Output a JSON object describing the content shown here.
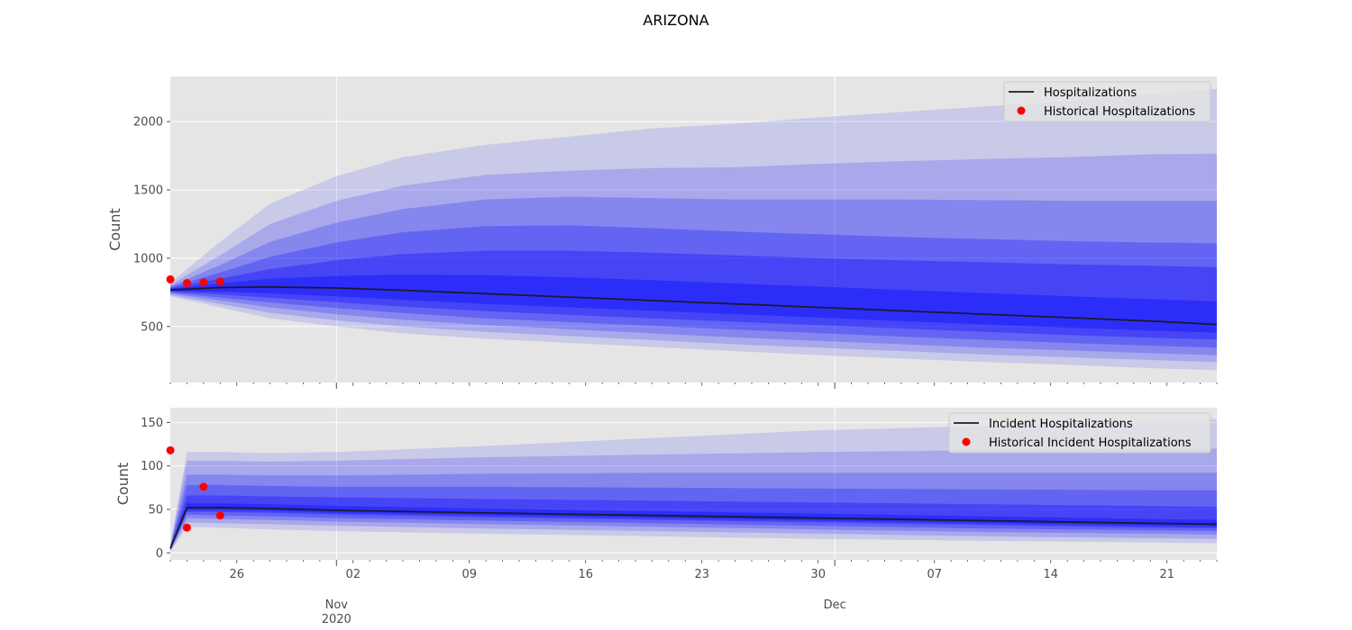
{
  "title": "ARIZONA",
  "colors": {
    "panel_bg": "#e5e5e5",
    "grid": "#ffffff",
    "band": "#0000ff",
    "median": "#1a1a2e",
    "observed": "#ff0000",
    "text": "#4d4d4d"
  },
  "x_axis": {
    "minor_tick_labels": [
      "26",
      "02",
      "09",
      "16",
      "23",
      "30",
      "07",
      "14",
      "21"
    ],
    "month_labels": [
      {
        "name": "Nov",
        "year": "2020"
      },
      {
        "name": "Dec",
        "year": ""
      }
    ]
  },
  "chart_data": [
    {
      "type": "area",
      "title": "",
      "ylabel": "Count",
      "legend": "top-right",
      "grid": true,
      "ylim": [
        90,
        2330
      ],
      "xlim": [
        "2020-10-22",
        "2020-12-24"
      ],
      "yticks": [
        500,
        1000,
        1500,
        2000
      ],
      "legend_entries": [
        "Hospitalizations",
        "Historical Hospitalizations"
      ],
      "series": [
        {
          "name": "Hospitalizations",
          "kind": "line",
          "x": [
            "2020-10-22",
            "2020-10-25",
            "2020-10-28",
            "2020-11-01",
            "2020-11-05",
            "2020-11-10",
            "2020-11-15",
            "2020-11-20",
            "2020-11-25",
            "2020-11-30",
            "2020-12-05",
            "2020-12-10",
            "2020-12-15",
            "2020-12-20",
            "2020-12-24"
          ],
          "values": [
            768,
            785,
            790,
            782,
            765,
            740,
            715,
            690,
            665,
            640,
            615,
            590,
            565,
            540,
            515
          ]
        },
        {
          "name": "Historical Hospitalizations",
          "kind": "scatter",
          "x": [
            "2020-10-22",
            "2020-10-23",
            "2020-10-24",
            "2020-10-25"
          ],
          "values": [
            845,
            818,
            823,
            829
          ]
        }
      ],
      "bands": [
        {
          "x": [
            "2020-10-22",
            "2020-10-25",
            "2020-10-28",
            "2020-11-01",
            "2020-11-05",
            "2020-11-10",
            "2020-11-15",
            "2020-11-20",
            "2020-11-25",
            "2020-11-30",
            "2020-12-05",
            "2020-12-10",
            "2020-12-15",
            "2020-12-20",
            "2020-12-24"
          ],
          "lower": [
            720,
            640,
            560,
            500,
            450,
            410,
            380,
            350,
            320,
            290,
            265,
            240,
            220,
            195,
            180
          ],
          "upper": [
            820,
            1120,
            1400,
            1600,
            1740,
            1830,
            1890,
            1950,
            1985,
            2030,
            2070,
            2110,
            2150,
            2200,
            2240
          ]
        },
        {
          "x": [
            "2020-10-22",
            "2020-10-25",
            "2020-10-28",
            "2020-11-01",
            "2020-11-05",
            "2020-11-10",
            "2020-11-15",
            "2020-11-20",
            "2020-11-25",
            "2020-11-30",
            "2020-12-05",
            "2020-12-10",
            "2020-12-15",
            "2020-12-20",
            "2020-12-24"
          ],
          "lower": [
            730,
            665,
            600,
            545,
            500,
            460,
            430,
            400,
            370,
            345,
            320,
            295,
            275,
            255,
            240
          ],
          "upper": [
            805,
            1020,
            1250,
            1420,
            1530,
            1610,
            1640,
            1660,
            1665,
            1690,
            1710,
            1725,
            1740,
            1760,
            1765
          ]
        },
        {
          "x": [
            "2020-10-22",
            "2020-10-25",
            "2020-10-28",
            "2020-11-01",
            "2020-11-05",
            "2020-11-10",
            "2020-11-15",
            "2020-11-20",
            "2020-11-25",
            "2020-11-30",
            "2020-12-05",
            "2020-12-10",
            "2020-12-15",
            "2020-12-20",
            "2020-12-24"
          ],
          "lower": [
            740,
            690,
            640,
            590,
            550,
            510,
            480,
            450,
            420,
            395,
            370,
            345,
            325,
            305,
            290
          ],
          "upper": [
            795,
            950,
            1120,
            1260,
            1360,
            1430,
            1450,
            1440,
            1430,
            1430,
            1430,
            1425,
            1420,
            1420,
            1420
          ]
        },
        {
          "x": [
            "2020-10-22",
            "2020-10-25",
            "2020-10-28",
            "2020-11-01",
            "2020-11-05",
            "2020-11-10",
            "2020-11-15",
            "2020-11-20",
            "2020-11-25",
            "2020-11-30",
            "2020-12-05",
            "2020-12-10",
            "2020-12-15",
            "2020-12-20",
            "2020-12-24"
          ],
          "lower": [
            748,
            712,
            676,
            635,
            598,
            560,
            532,
            505,
            478,
            452,
            426,
            402,
            380,
            360,
            345
          ],
          "upper": [
            788,
            895,
            1010,
            1115,
            1190,
            1235,
            1240,
            1220,
            1195,
            1175,
            1155,
            1140,
            1125,
            1115,
            1110
          ]
        },
        {
          "x": [
            "2020-10-22",
            "2020-10-25",
            "2020-10-28",
            "2020-11-01",
            "2020-11-05",
            "2020-11-10",
            "2020-11-15",
            "2020-11-20",
            "2020-11-25",
            "2020-11-30",
            "2020-12-05",
            "2020-12-10",
            "2020-12-15",
            "2020-12-20",
            "2020-12-24"
          ],
          "lower": [
            755,
            735,
            710,
            678,
            645,
            612,
            585,
            560,
            535,
            510,
            485,
            460,
            438,
            418,
            405
          ],
          "upper": [
            782,
            850,
            920,
            985,
            1030,
            1055,
            1055,
            1040,
            1020,
            1000,
            985,
            970,
            955,
            945,
            935
          ]
        },
        {
          "x": [
            "2020-10-22",
            "2020-10-25",
            "2020-10-28",
            "2020-11-01",
            "2020-11-05",
            "2020-11-10",
            "2020-11-15",
            "2020-11-20",
            "2020-11-25",
            "2020-11-30",
            "2020-12-05",
            "2020-12-10",
            "2020-12-15",
            "2020-12-20",
            "2020-12-24"
          ],
          "lower": [
            760,
            755,
            742,
            720,
            695,
            665,
            640,
            615,
            590,
            565,
            540,
            515,
            492,
            470,
            455
          ],
          "upper": [
            776,
            815,
            850,
            870,
            880,
            875,
            860,
            840,
            815,
            792,
            768,
            745,
            722,
            700,
            685
          ]
        }
      ]
    },
    {
      "type": "area",
      "title": "",
      "ylabel": "Count",
      "legend": "top-right",
      "grid": true,
      "ylim": [
        -8,
        167
      ],
      "xlim": [
        "2020-10-22",
        "2020-12-24"
      ],
      "yticks": [
        0,
        50,
        100,
        150
      ],
      "legend_entries": [
        "Incident Hospitalizations",
        "Historical Incident Hospitalizations"
      ],
      "series": [
        {
          "name": "Incident Hospitalizations",
          "kind": "line",
          "x": [
            "2020-10-22",
            "2020-10-23",
            "2020-10-25",
            "2020-10-28",
            "2020-11-01",
            "2020-11-10",
            "2020-11-20",
            "2020-11-30",
            "2020-12-10",
            "2020-12-20",
            "2020-12-24"
          ],
          "values": [
            5,
            52,
            52,
            51,
            49,
            46,
            43,
            40,
            37,
            34,
            33
          ]
        },
        {
          "name": "Historical Incident Hospitalizations",
          "kind": "scatter",
          "x": [
            "2020-10-22",
            "2020-10-23",
            "2020-10-24",
            "2020-10-25"
          ],
          "values": [
            118,
            29,
            76,
            43
          ]
        }
      ],
      "bands": [
        {
          "x": [
            "2020-10-22",
            "2020-10-23",
            "2020-10-25",
            "2020-10-28",
            "2020-11-01",
            "2020-11-10",
            "2020-11-20",
            "2020-11-30",
            "2020-12-10",
            "2020-12-20",
            "2020-12-24"
          ],
          "lower": [
            1,
            30,
            29,
            27,
            25,
            22,
            19,
            16,
            14,
            12,
            11
          ],
          "upper": [
            10,
            116,
            116,
            115,
            116,
            123,
            132,
            141,
            146,
            152,
            154
          ]
        },
        {
          "x": [
            "2020-10-22",
            "2020-10-23",
            "2020-10-25",
            "2020-10-28",
            "2020-11-01",
            "2020-11-10",
            "2020-11-20",
            "2020-11-30",
            "2020-12-10",
            "2020-12-20",
            "2020-12-24"
          ],
          "lower": [
            2,
            35,
            34,
            33,
            31,
            28,
            25,
            22,
            19,
            17,
            16
          ],
          "upper": [
            9,
            106,
            106,
            105,
            106,
            110,
            113,
            116,
            118,
            120,
            120
          ]
        },
        {
          "x": [
            "2020-10-22",
            "2020-10-23",
            "2020-10-25",
            "2020-10-28",
            "2020-11-01",
            "2020-11-10",
            "2020-11-20",
            "2020-11-30",
            "2020-12-10",
            "2020-12-20",
            "2020-12-24"
          ],
          "lower": [
            3,
            40,
            39,
            38,
            36,
            33,
            30,
            27,
            24,
            22,
            21
          ],
          "upper": [
            8,
            90,
            90,
            89,
            89,
            91,
            92,
            92,
            92,
            92,
            92
          ]
        },
        {
          "x": [
            "2020-10-22",
            "2020-10-23",
            "2020-10-25",
            "2020-10-28",
            "2020-11-01",
            "2020-11-10",
            "2020-11-20",
            "2020-11-30",
            "2020-12-10",
            "2020-12-20",
            "2020-12-24"
          ],
          "lower": [
            3,
            44,
            43,
            42,
            40,
            37,
            34,
            31,
            28,
            26,
            25
          ],
          "upper": [
            7,
            78,
            78,
            77,
            76,
            76,
            75,
            74,
            73,
            72,
            72
          ]
        },
        {
          "x": [
            "2020-10-22",
            "2020-10-23",
            "2020-10-25",
            "2020-10-28",
            "2020-11-01",
            "2020-11-10",
            "2020-11-20",
            "2020-11-30",
            "2020-12-10",
            "2020-12-20",
            "2020-12-24"
          ],
          "lower": [
            4,
            47,
            47,
            46,
            44,
            41,
            38,
            35,
            32,
            29,
            28
          ],
          "upper": [
            6,
            66,
            66,
            65,
            64,
            62,
            60,
            58,
            56,
            54,
            53
          ]
        },
        {
          "x": [
            "2020-10-22",
            "2020-10-23",
            "2020-10-25",
            "2020-10-28",
            "2020-11-01",
            "2020-11-10",
            "2020-11-20",
            "2020-11-30",
            "2020-12-10",
            "2020-12-20",
            "2020-12-24"
          ],
          "lower": [
            4,
            49,
            49,
            48,
            46,
            43,
            40,
            37,
            34,
            31,
            30
          ],
          "upper": [
            6,
            57,
            57,
            56,
            54,
            51,
            48,
            45,
            42,
            39,
            38
          ]
        }
      ]
    }
  ]
}
